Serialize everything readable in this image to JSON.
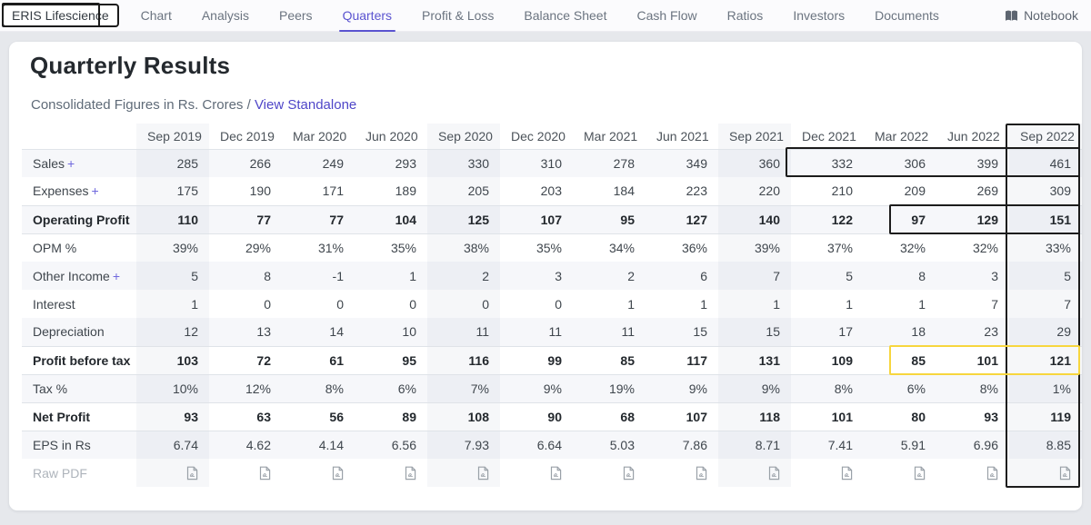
{
  "nav": {
    "company": "ERIS Lifescience",
    "tabs": [
      "Chart",
      "Analysis",
      "Peers",
      "Quarters",
      "Profit & Loss",
      "Balance Sheet",
      "Cash Flow",
      "Ratios",
      "Investors",
      "Documents"
    ],
    "active_tab": "Quarters",
    "notebook_label": "Notebook"
  },
  "main": {
    "title": "Quarterly Results",
    "subtitle": "Consolidated Figures in Rs. Crores /",
    "standalone_link": "View Standalone"
  },
  "table": {
    "columns": [
      "Sep 2019",
      "Dec 2019",
      "Mar 2020",
      "Jun 2020",
      "Sep 2020",
      "Dec 2020",
      "Mar 2021",
      "Jun 2021",
      "Sep 2021",
      "Dec 2021",
      "Mar 2022",
      "Jun 2022",
      "Sep 2022"
    ],
    "highlight_columns": [
      0,
      4,
      8,
      12
    ],
    "rows": [
      {
        "label": "Sales",
        "suffix": "+",
        "values": [
          "285",
          "266",
          "249",
          "293",
          "330",
          "310",
          "278",
          "349",
          "360",
          "332",
          "306",
          "399",
          "461"
        ]
      },
      {
        "label": "Expenses",
        "suffix": "+",
        "values": [
          "175",
          "190",
          "171",
          "189",
          "205",
          "203",
          "184",
          "223",
          "220",
          "210",
          "209",
          "269",
          "309"
        ]
      },
      {
        "label": "Operating Profit",
        "bold": true,
        "values": [
          "110",
          "77",
          "77",
          "104",
          "125",
          "107",
          "95",
          "127",
          "140",
          "122",
          "97",
          "129",
          "151"
        ]
      },
      {
        "label": "OPM %",
        "values": [
          "39%",
          "29%",
          "31%",
          "35%",
          "38%",
          "35%",
          "34%",
          "36%",
          "39%",
          "37%",
          "32%",
          "32%",
          "33%"
        ]
      },
      {
        "label": "Other Income",
        "suffix": "+",
        "values": [
          "5",
          "8",
          "-1",
          "1",
          "2",
          "3",
          "2",
          "6",
          "7",
          "5",
          "8",
          "3",
          "5"
        ]
      },
      {
        "label": "Interest",
        "values": [
          "1",
          "0",
          "0",
          "0",
          "0",
          "0",
          "1",
          "1",
          "1",
          "1",
          "1",
          "7",
          "7"
        ]
      },
      {
        "label": "Depreciation",
        "values": [
          "12",
          "13",
          "14",
          "10",
          "11",
          "11",
          "11",
          "15",
          "15",
          "17",
          "18",
          "23",
          "29"
        ]
      },
      {
        "label": "Profit before tax",
        "bold": true,
        "values": [
          "103",
          "72",
          "61",
          "95",
          "116",
          "99",
          "85",
          "117",
          "131",
          "109",
          "85",
          "101",
          "121"
        ]
      },
      {
        "label": "Tax %",
        "values": [
          "10%",
          "12%",
          "8%",
          "6%",
          "7%",
          "9%",
          "19%",
          "9%",
          "9%",
          "8%",
          "6%",
          "8%",
          "1%"
        ]
      },
      {
        "label": "Net Profit",
        "bold": true,
        "values": [
          "93",
          "63",
          "56",
          "89",
          "108",
          "90",
          "68",
          "107",
          "118",
          "101",
          "80",
          "93",
          "119"
        ]
      },
      {
        "label": "EPS in Rs",
        "values": [
          "6.74",
          "4.62",
          "4.14",
          "6.56",
          "7.93",
          "6.64",
          "5.03",
          "7.86",
          "8.71",
          "7.41",
          "5.91",
          "6.96",
          "8.85"
        ]
      },
      {
        "label": "Raw PDF",
        "type": "pdf"
      }
    ]
  },
  "annotations": {
    "boxes": [
      {
        "name": "company-name-box",
        "color": "black"
      },
      {
        "name": "sep-2022-column-box",
        "color": "black"
      },
      {
        "name": "sales-recent-quarters-box",
        "color": "black"
      },
      {
        "name": "operating-profit-recent-box",
        "color": "black"
      },
      {
        "name": "profit-before-tax-recent-box",
        "color": "yellow"
      }
    ]
  },
  "colors": {
    "accent": "#5b54d0",
    "link": "#4f46c8",
    "annotation_black": "#1c1c1c",
    "annotation_yellow": "#f7d63e"
  }
}
